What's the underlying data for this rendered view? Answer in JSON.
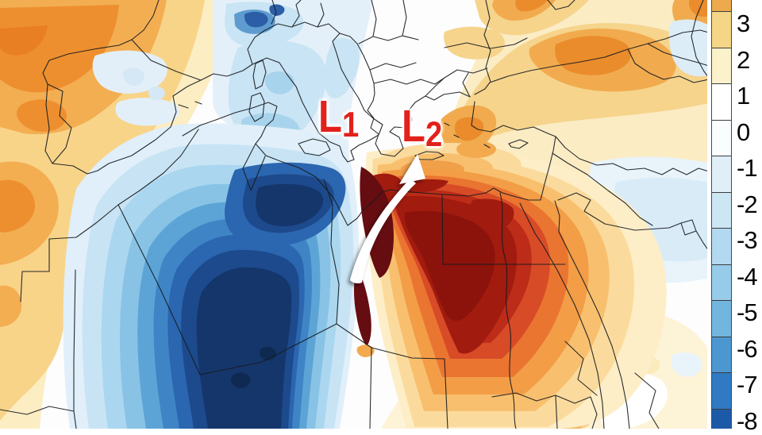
{
  "map": {
    "kind": "temperature-anomaly-contour-weather-map",
    "region": "Europe, North Africa and Middle East"
  },
  "annotations": {
    "low1": {
      "letter": "L",
      "sub": "1"
    },
    "low2": {
      "letter": "L",
      "sub": "2"
    },
    "label_color": "#e2211c",
    "arrow_color": "#ffffff"
  },
  "colorbar": {
    "ticks": [
      "3",
      "2",
      "1",
      "0",
      "-1",
      "-2",
      "-3",
      "-4",
      "-5",
      "-6",
      "-7",
      "-8"
    ],
    "segment_colors": [
      "#edaa4d",
      "#f5d687",
      "#fbf1ca",
      "#ffffff",
      "#fafdfe",
      "#e0eef7",
      "#cce6f4",
      "#b2d9ef",
      "#96cbe9",
      "#72b5de",
      "#4d97d1",
      "#2f7ac2",
      "#1c5aa8"
    ],
    "tick_color": "#060606",
    "background": "#ffffff"
  },
  "palette": {
    "cold_core": "#15366b",
    "cold_mid": "#3f85c6",
    "cold_light": "#c8e4f4",
    "warm_core": "#8b130b",
    "warm_dark_streak": "#650d11",
    "warm_mid": "#ea7531",
    "warm_light": "#f8d489",
    "border_line": "#181b20"
  }
}
